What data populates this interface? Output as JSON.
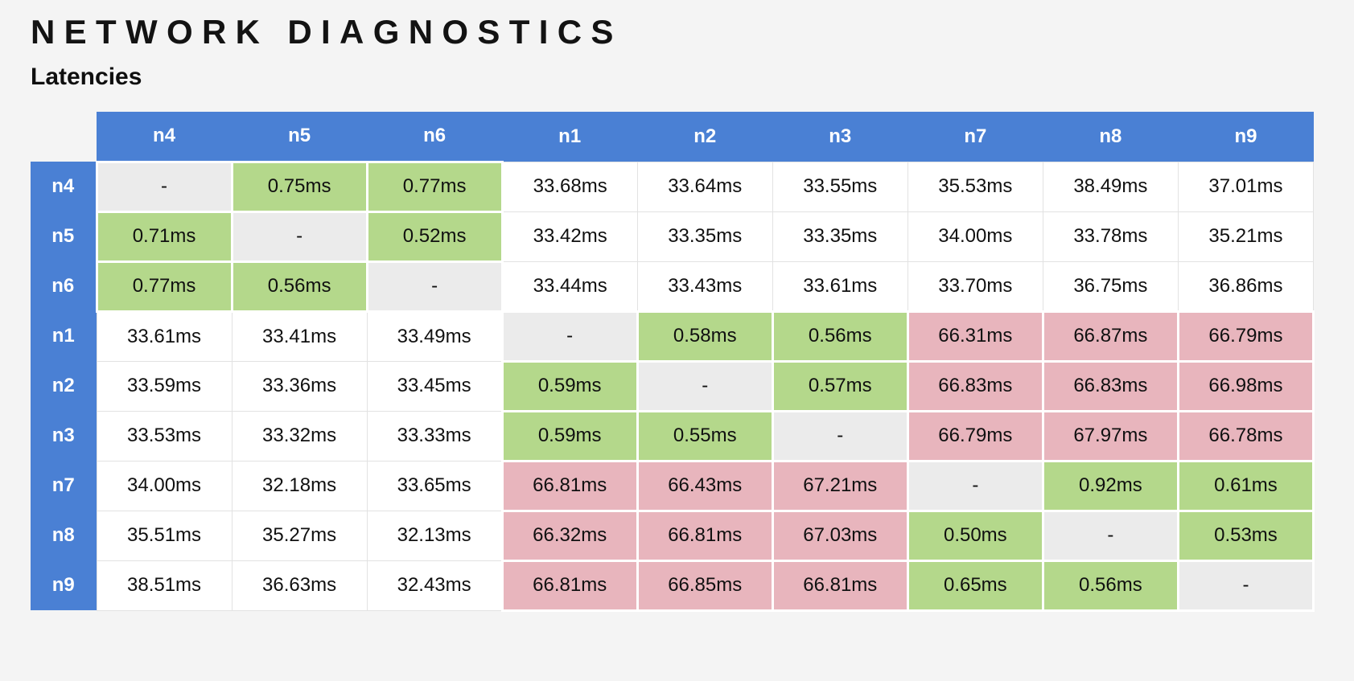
{
  "page": {
    "title": "NETWORK DIAGNOSTICS",
    "subtitle": "Latencies"
  },
  "palette": {
    "page_bg": "#f4f4f4",
    "header_blue": "#4a80d4",
    "fast_green": "#b4d88b",
    "slow_pink": "#e8b5bd",
    "diag_gray": "#ebebeb",
    "cell_white": "#ffffff",
    "cell_border": "#e2e2e2",
    "text_dark": "#131313"
  },
  "table": {
    "columns": [
      "n4",
      "n5",
      "n6",
      "n1",
      "n2",
      "n3",
      "n7",
      "n8",
      "n9"
    ],
    "rows": [
      {
        "label": "n4",
        "cells": [
          "-",
          "0.75ms",
          "0.77ms",
          "33.68ms",
          "33.64ms",
          "33.55ms",
          "35.53ms",
          "38.49ms",
          "37.01ms"
        ]
      },
      {
        "label": "n5",
        "cells": [
          "0.71ms",
          "-",
          "0.52ms",
          "33.42ms",
          "33.35ms",
          "33.35ms",
          "34.00ms",
          "33.78ms",
          "35.21ms"
        ]
      },
      {
        "label": "n6",
        "cells": [
          "0.77ms",
          "0.56ms",
          "-",
          "33.44ms",
          "33.43ms",
          "33.61ms",
          "33.70ms",
          "36.75ms",
          "36.86ms"
        ]
      },
      {
        "label": "n1",
        "cells": [
          "33.61ms",
          "33.41ms",
          "33.49ms",
          "-",
          "0.58ms",
          "0.56ms",
          "66.31ms",
          "66.87ms",
          "66.79ms"
        ]
      },
      {
        "label": "n2",
        "cells": [
          "33.59ms",
          "33.36ms",
          "33.45ms",
          "0.59ms",
          "-",
          "0.57ms",
          "66.83ms",
          "66.83ms",
          "66.98ms"
        ]
      },
      {
        "label": "n3",
        "cells": [
          "33.53ms",
          "33.32ms",
          "33.33ms",
          "0.59ms",
          "0.55ms",
          "-",
          "66.79ms",
          "67.97ms",
          "66.78ms"
        ]
      },
      {
        "label": "n7",
        "cells": [
          "34.00ms",
          "32.18ms",
          "33.65ms",
          "66.81ms",
          "66.43ms",
          "67.21ms",
          "-",
          "0.92ms",
          "0.61ms"
        ]
      },
      {
        "label": "n8",
        "cells": [
          "35.51ms",
          "35.27ms",
          "32.13ms",
          "66.32ms",
          "66.81ms",
          "67.03ms",
          "0.50ms",
          "-",
          "0.53ms"
        ]
      },
      {
        "label": "n9",
        "cells": [
          "38.51ms",
          "36.63ms",
          "32.43ms",
          "66.81ms",
          "66.85ms",
          "66.81ms",
          "0.65ms",
          "0.56ms",
          "-"
        ]
      }
    ]
  },
  "chart_data": {
    "type": "table",
    "title": "NETWORK DIAGNOSTICS",
    "subtitle": "Latencies",
    "unit": "ms",
    "columns": [
      "n4",
      "n5",
      "n6",
      "n1",
      "n2",
      "n3",
      "n7",
      "n8",
      "n9"
    ],
    "rows": [
      "n4",
      "n5",
      "n6",
      "n1",
      "n2",
      "n3",
      "n7",
      "n8",
      "n9"
    ],
    "values_ms": [
      [
        null,
        0.75,
        0.77,
        33.68,
        33.64,
        33.55,
        35.53,
        38.49,
        37.01
      ],
      [
        0.71,
        null,
        0.52,
        33.42,
        33.35,
        33.35,
        34.0,
        33.78,
        35.21
      ],
      [
        0.77,
        0.56,
        null,
        33.44,
        33.43,
        33.61,
        33.7,
        36.75,
        36.86
      ],
      [
        33.61,
        33.41,
        33.49,
        null,
        0.58,
        0.56,
        66.31,
        66.87,
        66.79
      ],
      [
        33.59,
        33.36,
        33.45,
        0.59,
        null,
        0.57,
        66.83,
        66.83,
        66.98
      ],
      [
        33.53,
        33.32,
        33.33,
        0.59,
        0.55,
        null,
        66.79,
        67.97,
        66.78
      ],
      [
        34.0,
        32.18,
        33.65,
        66.81,
        66.43,
        67.21,
        null,
        0.92,
        0.61
      ],
      [
        35.51,
        35.27,
        32.13,
        66.32,
        66.81,
        67.03,
        0.5,
        null,
        0.53
      ],
      [
        38.51,
        36.63,
        32.43,
        66.81,
        66.85,
        66.81,
        0.65,
        0.56,
        null
      ]
    ],
    "cell_color_rule": {
      "diagonal_self": "#ebebeb",
      "under_1ms": "#b4d88b",
      "around_33ms": "#ffffff",
      "over_66ms": "#e8b5bd"
    },
    "layout_hints": {
      "header_fill": "#4a80d4",
      "header_text": "#ffffff",
      "grid": "white gaps between colored cells, light gray borders between white cells",
      "legend": "none shown"
    }
  }
}
